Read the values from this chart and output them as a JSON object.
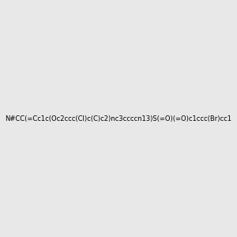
{
  "smiles": "N#CC(=Cc1c(Oc2ccc(Cl)c(C)c2)nc3ccccn13)S(=O)(=O)c1ccc(Br)cc1",
  "background_color": "#e8e8e8",
  "figure_size": [
    3.0,
    3.0
  ],
  "dpi": 100,
  "title": "",
  "atom_colors": {
    "N": "#0000ff",
    "O": "#ff0000",
    "S": "#ccaa00",
    "Cl": "#00cc00",
    "Br": "#cc8800",
    "C": "#000000",
    "H": "#5f9ea0"
  }
}
